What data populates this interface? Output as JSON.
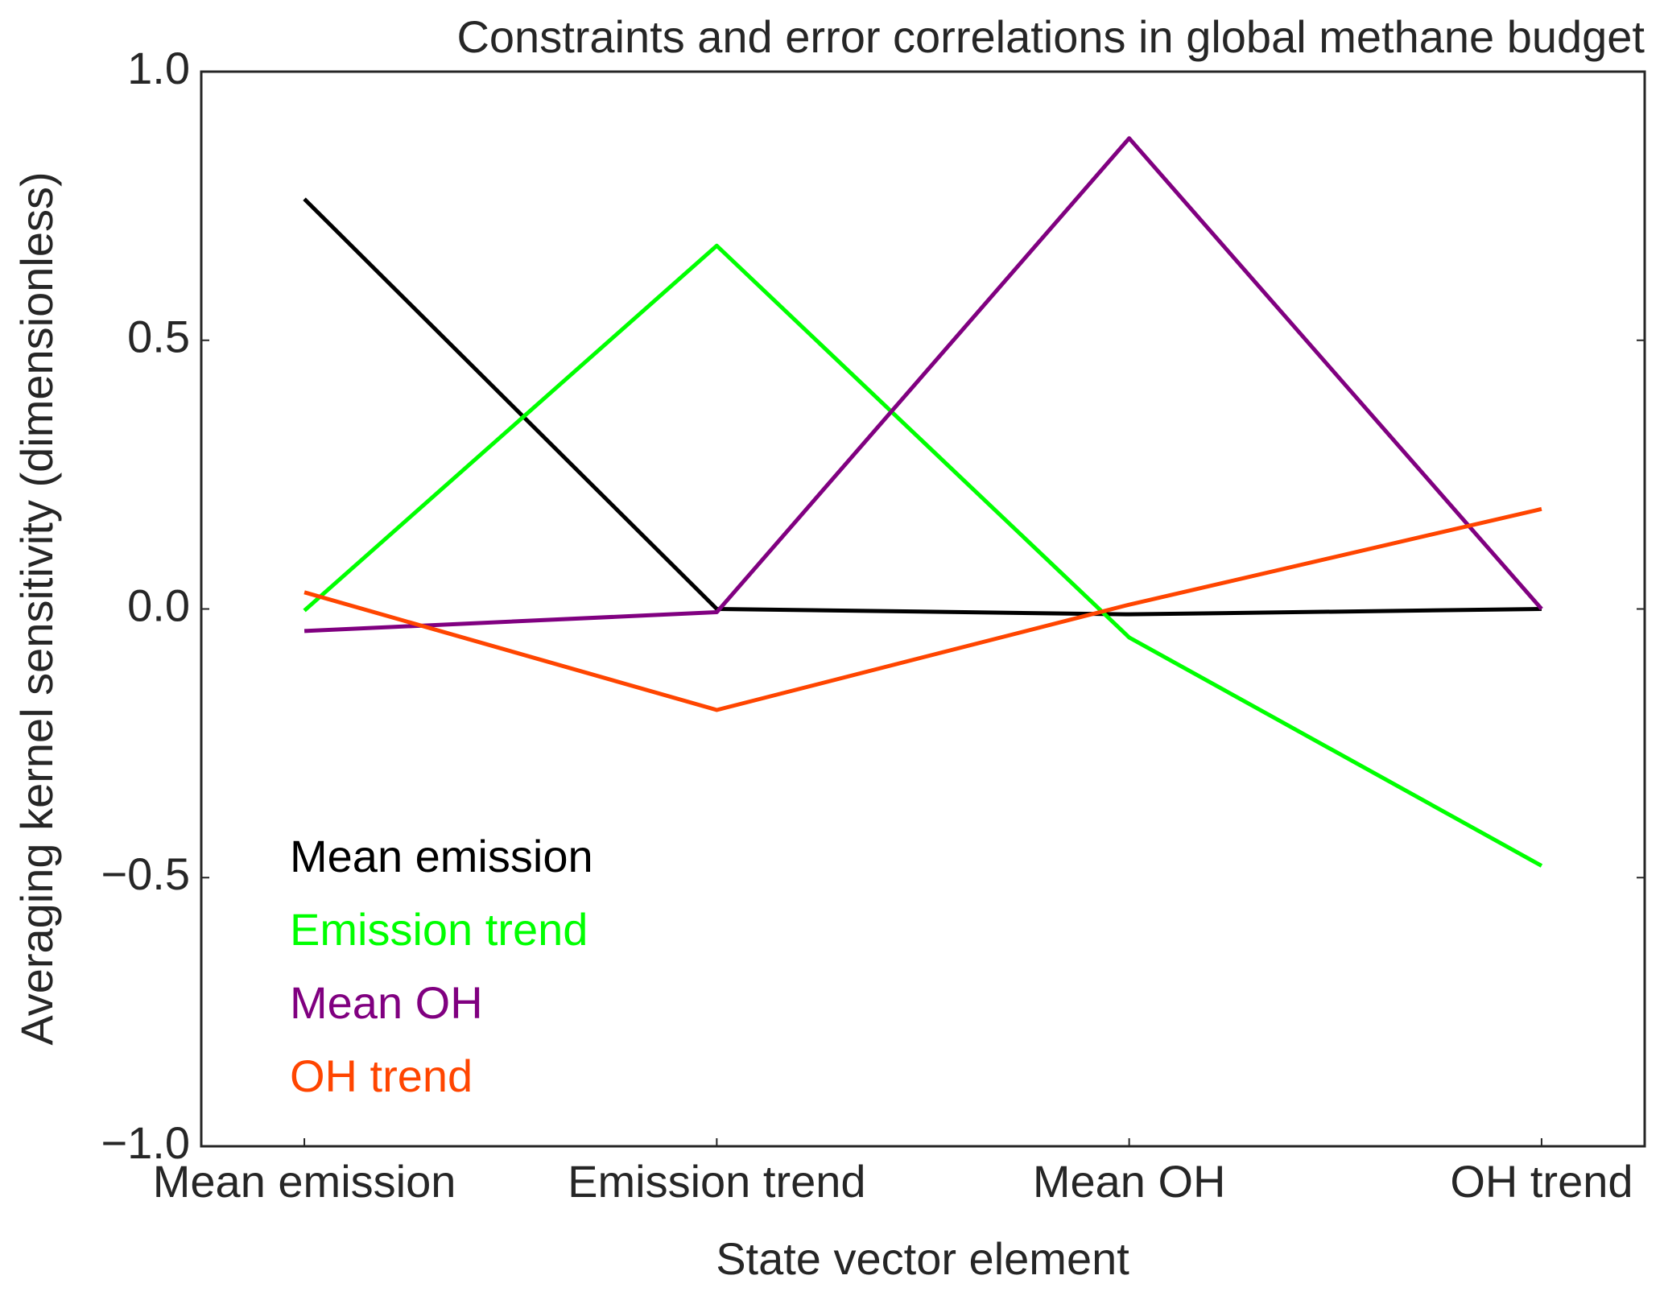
{
  "chart_data": {
    "type": "line",
    "title": "Constraints and error correlations in global methane budget",
    "x_label": "State vector element",
    "y_label": "Averaging kernel sensitivity (dimensionless)",
    "categories": [
      "Mean emission",
      "Emission trend",
      "Mean OH",
      "OH trend"
    ],
    "series": [
      {
        "name": "Mean emission",
        "color": "#000000",
        "values": [
          0.763,
          0.0,
          -0.01,
          0.0
        ]
      },
      {
        "name": "Emission trend",
        "color": "#00ff00",
        "values": [
          -0.003,
          0.676,
          -0.053,
          -0.478
        ]
      },
      {
        "name": "Mean OH",
        "color": "#800080",
        "values": [
          -0.041,
          -0.006,
          0.876,
          0.0
        ]
      },
      {
        "name": "OH trend",
        "color": "#ff4500",
        "values": [
          0.031,
          -0.188,
          0.008,
          0.186
        ]
      }
    ],
    "ylim": [
      -1.0,
      1.0
    ],
    "yticks": [
      {
        "value": -1.0,
        "label": "−1.0"
      },
      {
        "value": -0.5,
        "label": "−0.5"
      },
      {
        "value": 0.0,
        "label": "0.0"
      },
      {
        "value": 0.5,
        "label": "0.5"
      },
      {
        "value": 1.0,
        "label": "1.0"
      }
    ],
    "grid": false,
    "legend": "lower left"
  }
}
